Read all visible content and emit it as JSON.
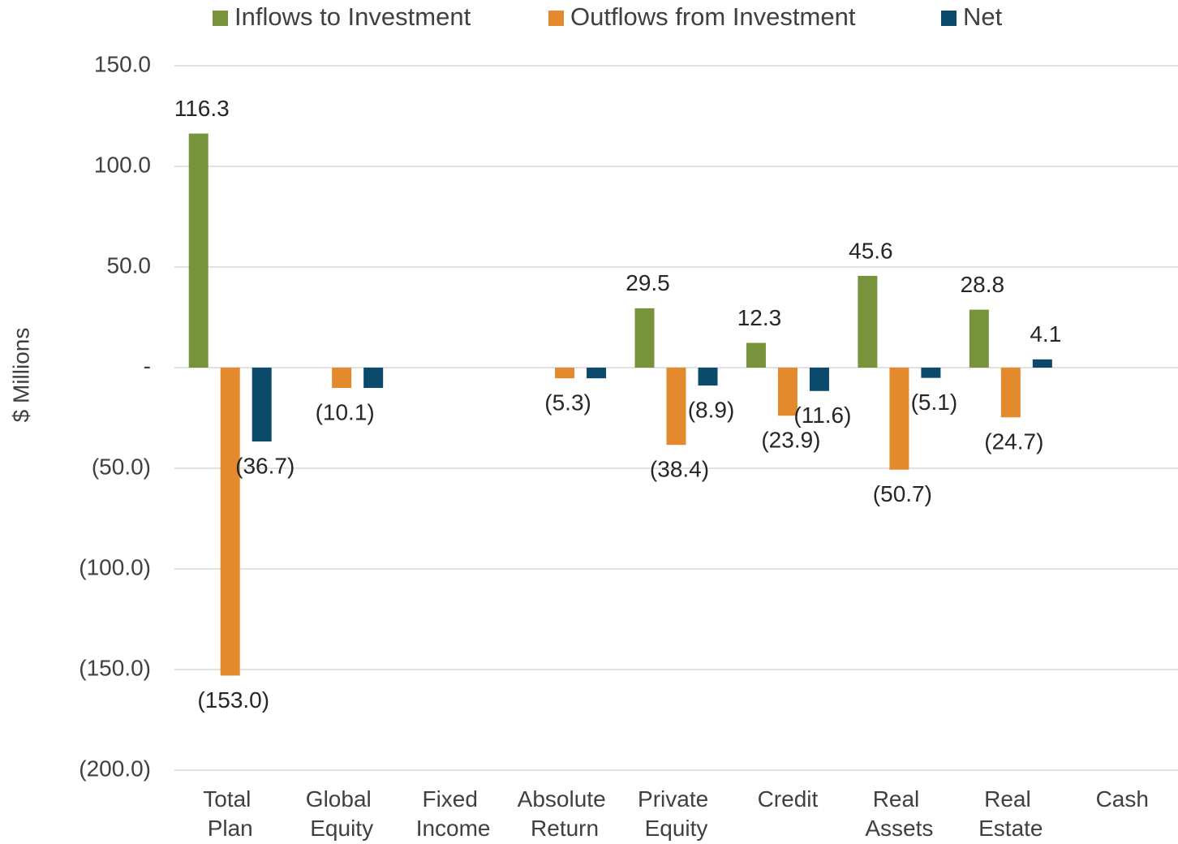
{
  "chart_data": {
    "type": "bar",
    "y_label": "$ Millions",
    "categories": [
      "Total Plan",
      "Global Equity",
      "Fixed Income",
      "Absolute Return",
      "Private Equity",
      "Credit",
      "Real Assets",
      "Real Estate",
      "Cash"
    ],
    "series": [
      {
        "name": "Inflows to Investment",
        "color": "#77933c",
        "values": [
          116.3,
          null,
          null,
          null,
          29.5,
          12.3,
          45.6,
          28.8,
          null
        ],
        "value_labels": [
          "116.3",
          null,
          null,
          null,
          "29.5",
          "12.3",
          "45.6",
          "28.8",
          null
        ]
      },
      {
        "name": "Outflows from Investment",
        "color": "#e38a2e",
        "values": [
          -153.0,
          -10.1,
          null,
          -5.3,
          -38.4,
          -23.9,
          -50.7,
          -24.7,
          null
        ],
        "value_labels": [
          "(153.0)",
          "(10.1)",
          null,
          "(5.3)",
          "(38.4)",
          "(23.9)",
          "(50.7)",
          "(24.7)",
          null
        ]
      },
      {
        "name": "Net",
        "color": "#0b4a6b",
        "values": [
          -36.7,
          -10.1,
          null,
          -5.3,
          -8.9,
          -11.6,
          -5.1,
          4.1,
          null
        ],
        "value_labels": [
          "(36.7)",
          null,
          null,
          null,
          "(8.9)",
          "(11.6)",
          "(5.1)",
          "4.1",
          null
        ]
      }
    ],
    "ylim": [
      -200,
      150
    ],
    "yticks": [
      {
        "value": 150,
        "label": "150.0"
      },
      {
        "value": 100,
        "label": "100.0"
      },
      {
        "value": 50,
        "label": "50.0"
      },
      {
        "value": 0,
        "label": "-"
      },
      {
        "value": -50,
        "label": "(50.0)"
      },
      {
        "value": -100,
        "label": "(100.0)"
      },
      {
        "value": -150,
        "label": "(150.0)"
      },
      {
        "value": -200,
        "label": "(200.0)"
      }
    ],
    "grid": true,
    "legend": "top"
  }
}
